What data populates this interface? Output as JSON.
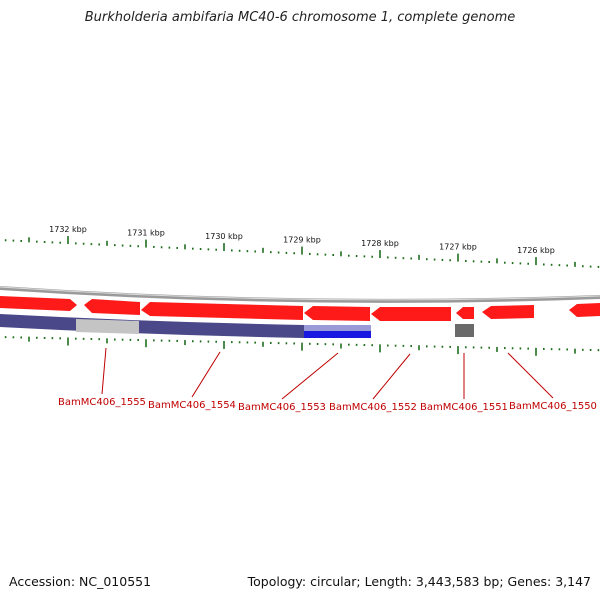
{
  "title": "Burkholderia ambifaria MC40-6 chromosome 1, complete genome",
  "footer": {
    "accession": "Accession: NC_010551",
    "summary": "Topology: circular; Length: 3,443,583 bp; Genes: 3,147"
  },
  "colors": {
    "gene_forward": "#ff0000",
    "gene_reverse": "#e00000",
    "backbone": "#7a7a7a",
    "cds_purple": "#4a4888",
    "cds_highlight": "#1818e0",
    "cds_grey": "#bdbdbd",
    "cds_dark": "#6a6a6a",
    "tick": "#1e6e1e",
    "label": "#c00000"
  },
  "chart_data": {
    "type": "genome-map",
    "units": "kbp",
    "scale_ticks": [
      {
        "label": "1732 kbp",
        "kbp": 1732
      },
      {
        "label": "1731 kbp",
        "kbp": 1731
      },
      {
        "label": "1730 kbp",
        "kbp": 1730
      },
      {
        "label": "1729 kbp",
        "kbp": 1729
      },
      {
        "label": "1728 kbp",
        "kbp": 1728
      },
      {
        "label": "1727 kbp",
        "kbp": 1727
      },
      {
        "label": "1726 kbp",
        "kbp": 1726
      }
    ],
    "genes": [
      {
        "label": "BamMC406_1555"
      },
      {
        "label": "BamMC406_1554"
      },
      {
        "label": "BamMC406_1553"
      },
      {
        "label": "BamMC406_1552"
      },
      {
        "label": "BamMC406_1551"
      },
      {
        "label": "BamMC406_1550"
      }
    ]
  }
}
